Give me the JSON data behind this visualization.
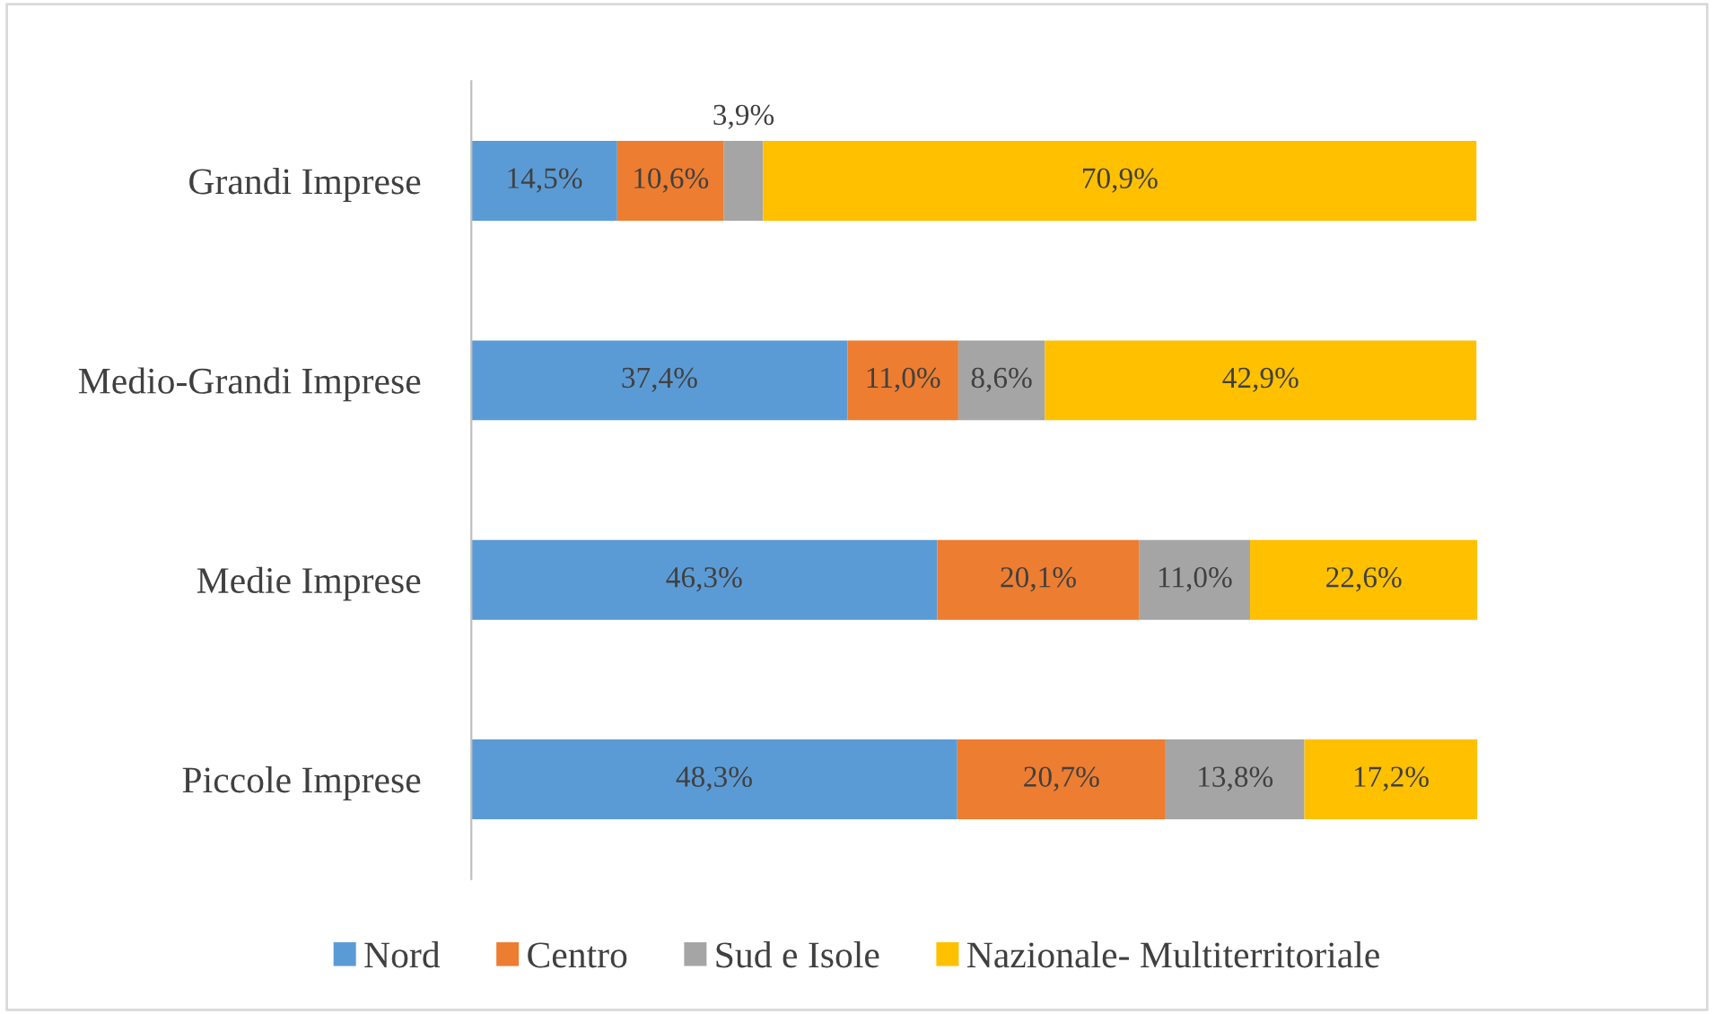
{
  "chart_data": {
    "type": "bar",
    "orientation": "horizontal",
    "stacked": true,
    "legend": "bottom",
    "grid": false,
    "categories": [
      "Grandi Imprese",
      "Medio-Grandi Imprese",
      "Medie Imprese",
      "Piccole Imprese"
    ],
    "series": [
      {
        "name": "Nord",
        "color": "#5b9bd5",
        "values": [
          14.5,
          37.4,
          46.3,
          48.3
        ],
        "value_labels": [
          "14,5%",
          "37,4%",
          "46,3%",
          "48,3%"
        ]
      },
      {
        "name": "Centro",
        "color": "#ed7d31",
        "values": [
          10.6,
          11.0,
          20.1,
          20.7
        ],
        "value_labels": [
          "10,6%",
          "11,0%",
          "20,1%",
          "20,7%"
        ]
      },
      {
        "name": "Sud e Isole",
        "color": "#a5a5a5",
        "values": [
          3.9,
          8.6,
          11.0,
          13.8
        ],
        "value_labels": [
          "3,9%",
          "8,6%",
          "11,0%",
          "13,8%"
        ]
      },
      {
        "name": "Nazionale- Multiterritoriale",
        "color": "#ffc000",
        "values": [
          70.9,
          42.9,
          22.6,
          17.2
        ],
        "value_labels": [
          "70,9%",
          "42,9%",
          "22,6%",
          "17,2%"
        ]
      }
    ]
  }
}
